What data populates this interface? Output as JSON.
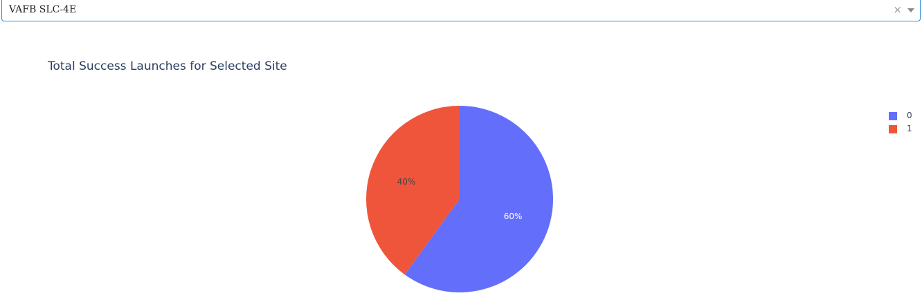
{
  "dropdown": {
    "selected_value": "VAFB SLC-4E",
    "clear_symbol": "×"
  },
  "chart_data": {
    "type": "pie",
    "title": "Total Success Launches for Selected Site",
    "slices": [
      {
        "label": "0",
        "percent": 60,
        "display": "60%",
        "color": "#636efa",
        "text_color": "#ffffff"
      },
      {
        "label": "1",
        "percent": 40,
        "display": "40%",
        "color": "#ef553b",
        "text_color": "#444444"
      }
    ],
    "legend": {
      "placement": "right",
      "entries": [
        "0",
        "1"
      ]
    }
  }
}
